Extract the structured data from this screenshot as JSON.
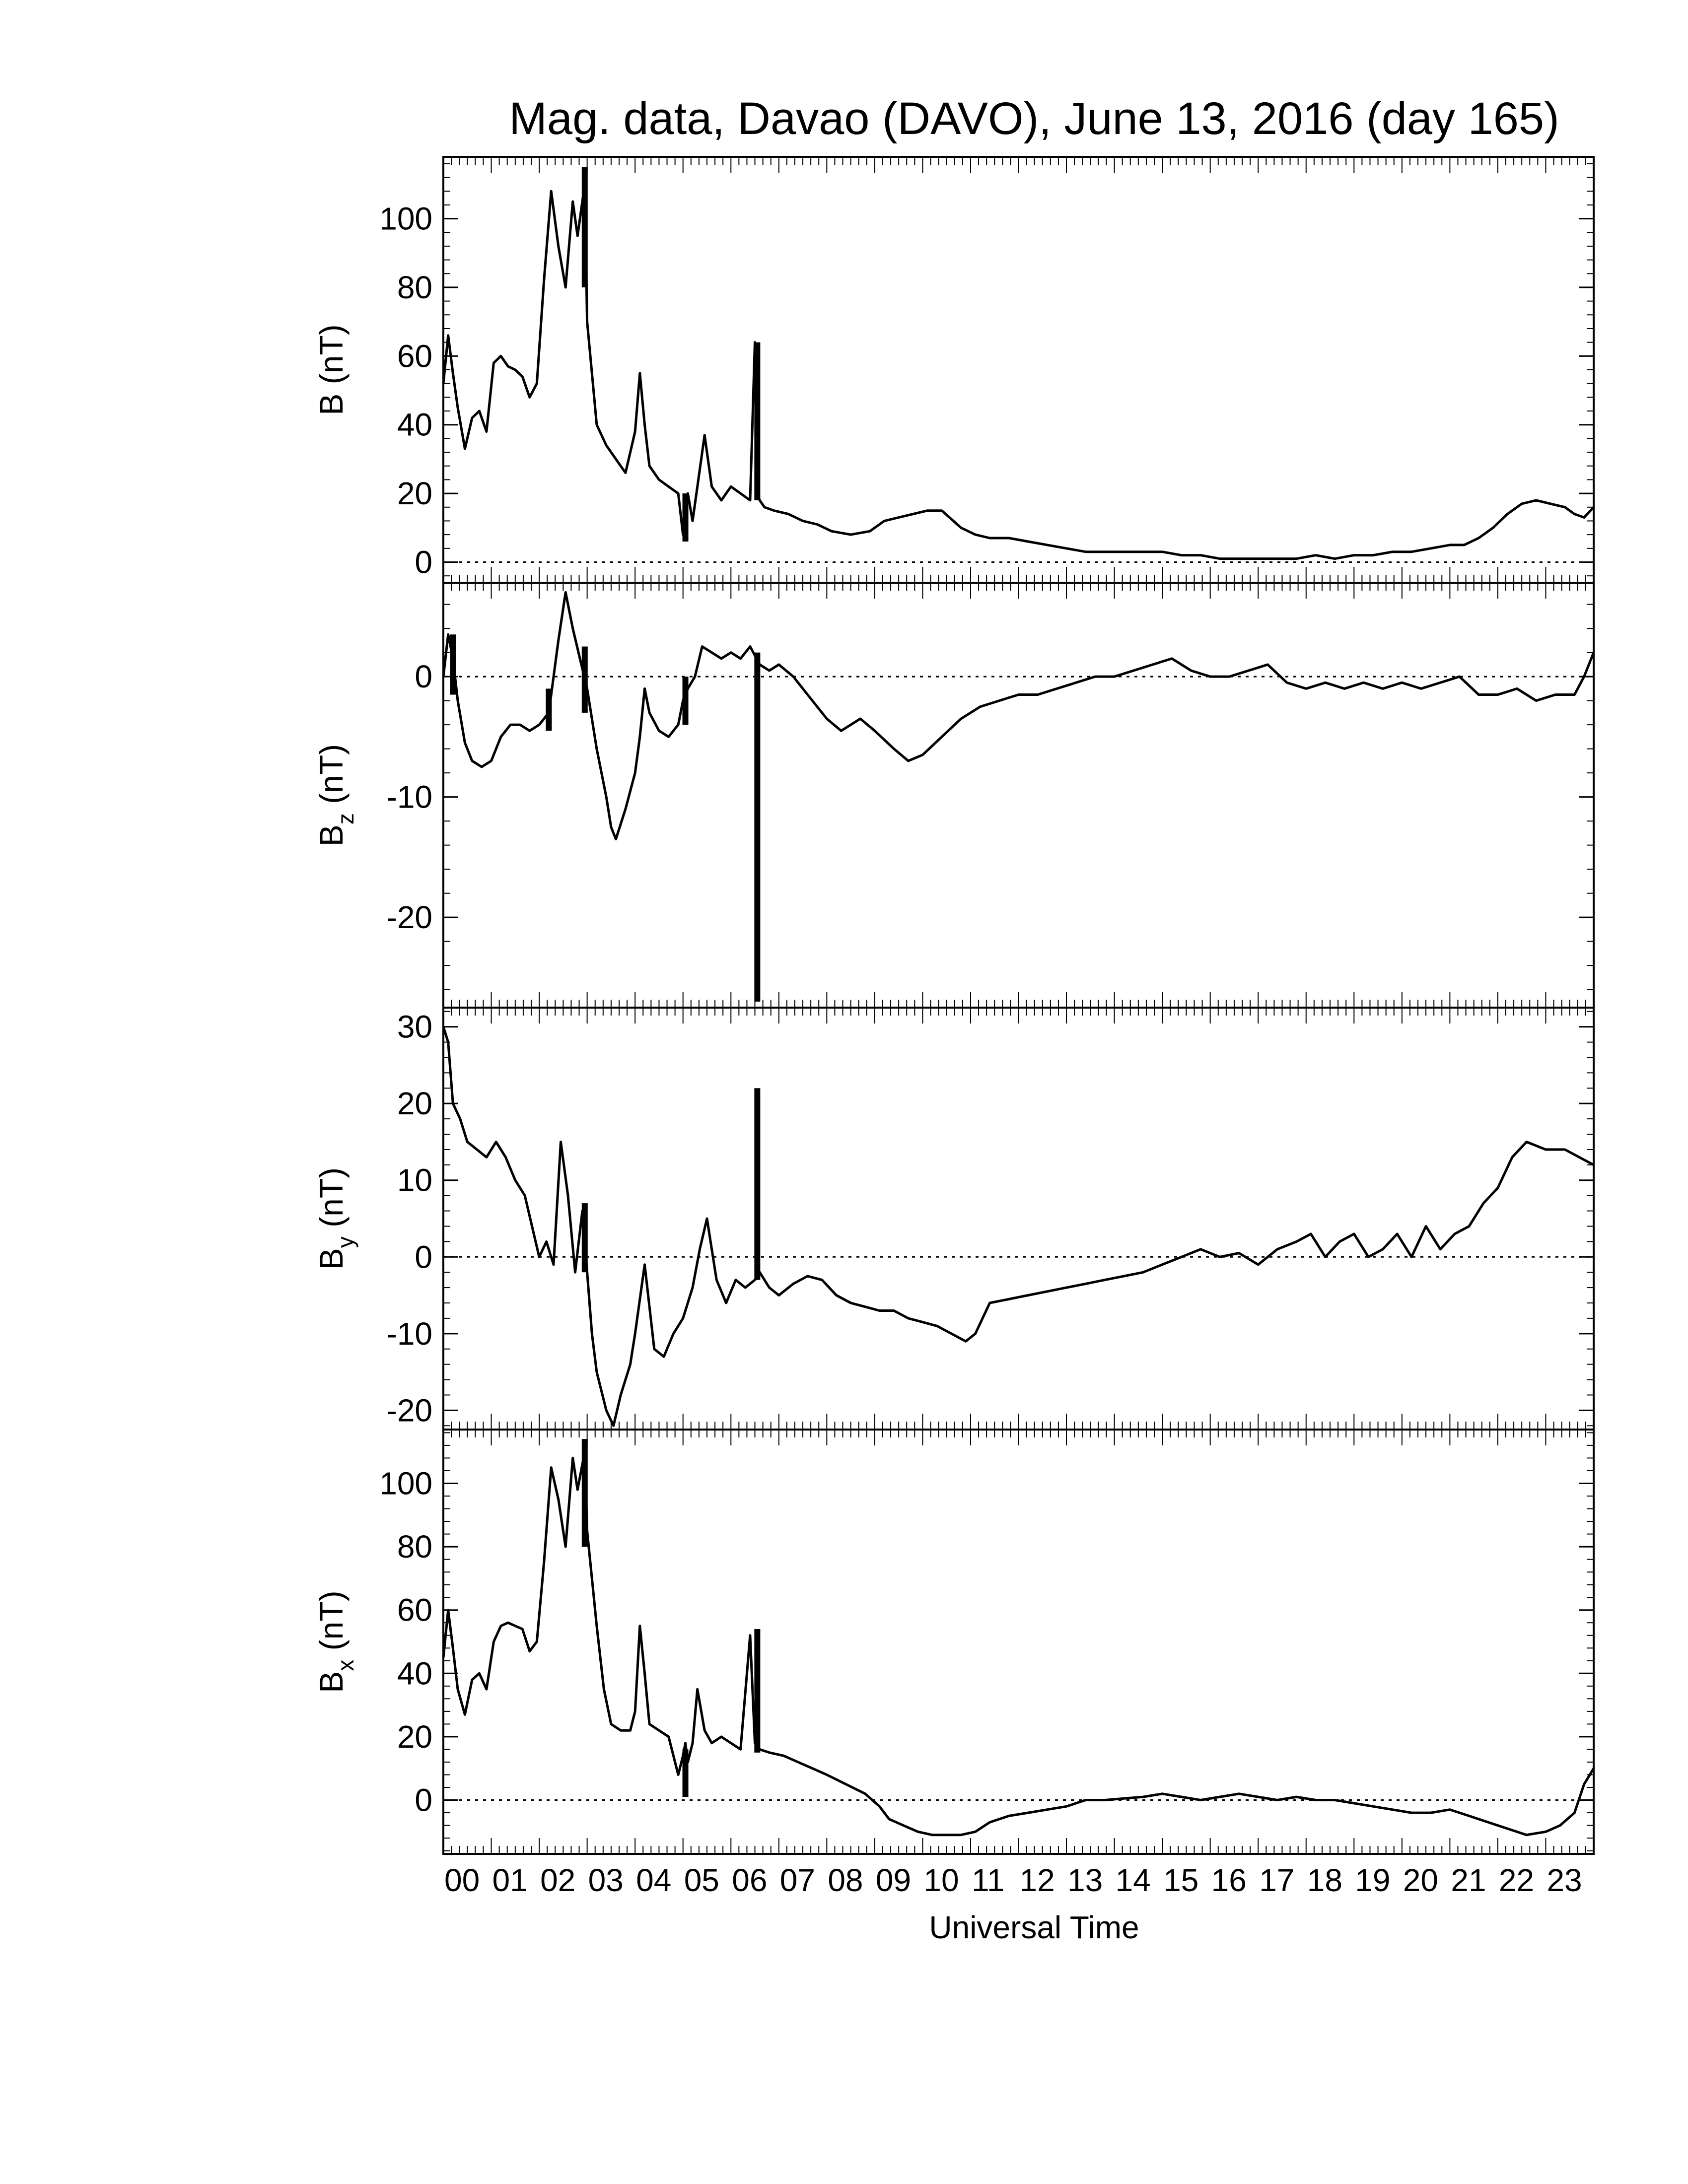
{
  "chart_data": {
    "type": "line",
    "title": "Mag. data, Davao (DAVO), June 13, 2016 (day 165)",
    "xlabel": "Universal Time",
    "xlim": [
      0,
      24
    ],
    "x_tick_labels": [
      "00",
      "01",
      "02",
      "03",
      "04",
      "05",
      "06",
      "07",
      "08",
      "09",
      "10",
      "11",
      "12",
      "13",
      "14",
      "15",
      "16",
      "17",
      "18",
      "19",
      "20",
      "21",
      "22",
      "23"
    ],
    "line_color": "#000000",
    "zero_line": "dotted",
    "panels": [
      {
        "id": "B",
        "ylabel_main": "B",
        "ylabel_sub": "",
        "ylabel_unit": " (nT)",
        "ylim": [
          -6,
          118
        ],
        "y_ticks": [
          0,
          20,
          40,
          60,
          80,
          100
        ],
        "y_tick_labels": [
          "0",
          "20",
          "40",
          "60",
          "80",
          "100"
        ],
        "x": [
          0.0,
          0.1,
          0.2,
          0.3,
          0.45,
          0.6,
          0.75,
          0.9,
          1.05,
          1.2,
          1.35,
          1.5,
          1.65,
          1.8,
          1.95,
          2.1,
          2.25,
          2.4,
          2.55,
          2.7,
          2.8,
          2.95,
          3.0,
          3.1,
          3.2,
          3.4,
          3.6,
          3.8,
          4.0,
          4.1,
          4.2,
          4.3,
          4.5,
          4.7,
          4.9,
          5.0,
          5.05,
          5.1,
          5.2,
          5.3,
          5.45,
          5.6,
          5.8,
          6.0,
          6.2,
          6.4,
          6.5,
          6.55,
          6.6,
          6.7,
          6.9,
          7.2,
          7.5,
          7.8,
          8.1,
          8.5,
          8.9,
          9.2,
          9.5,
          9.8,
          10.1,
          10.4,
          10.8,
          11.1,
          11.4,
          11.8,
          12.2,
          12.6,
          13.0,
          13.4,
          13.8,
          14.2,
          14.6,
          15.0,
          15.4,
          15.8,
          16.2,
          16.6,
          17.0,
          17.4,
          17.8,
          18.2,
          18.6,
          19.0,
          19.4,
          19.8,
          20.2,
          20.6,
          21.0,
          21.3,
          21.6,
          21.9,
          22.2,
          22.5,
          22.8,
          23.1,
          23.4,
          23.6,
          23.8,
          24.0
        ],
        "values": [
          52,
          66,
          55,
          45,
          33,
          42,
          44,
          38,
          58,
          60,
          57,
          56,
          54,
          48,
          52,
          82,
          108,
          92,
          80,
          105,
          95,
          110,
          70,
          55,
          40,
          34,
          30,
          26,
          38,
          55,
          40,
          28,
          24,
          22,
          20,
          8,
          18,
          20,
          12,
          22,
          37,
          22,
          18,
          22,
          20,
          18,
          64,
          20,
          18,
          16,
          15,
          14,
          12,
          11,
          9,
          8,
          9,
          12,
          13,
          14,
          15,
          15,
          10,
          8,
          7,
          7,
          6,
          5,
          4,
          3,
          3,
          3,
          3,
          3,
          2,
          2,
          1,
          1,
          1,
          1,
          1,
          2,
          1,
          2,
          2,
          3,
          3,
          4,
          5,
          5,
          7,
          10,
          14,
          17,
          18,
          17,
          16,
          14,
          13,
          16
        ],
        "spikes": [
          {
            "x": 2.95,
            "low": 80,
            "high": 115
          },
          {
            "x": 5.05,
            "low": 6,
            "high": 20
          },
          {
            "x": 6.55,
            "low": 18,
            "high": 64
          }
        ]
      },
      {
        "id": "Bz",
        "ylabel_main": "B",
        "ylabel_sub": "z",
        "ylabel_unit": " (nT)",
        "ylim": [
          -27.5,
          7.8
        ],
        "y_ticks": [
          0,
          -10,
          -20
        ],
        "y_tick_labels": [
          "0",
          "-10",
          "-20"
        ],
        "x": [
          0.0,
          0.1,
          0.2,
          0.3,
          0.45,
          0.6,
          0.8,
          1.0,
          1.2,
          1.4,
          1.6,
          1.8,
          2.0,
          2.2,
          2.4,
          2.55,
          2.7,
          2.85,
          3.0,
          3.2,
          3.4,
          3.5,
          3.6,
          3.8,
          4.0,
          4.1,
          4.2,
          4.3,
          4.5,
          4.7,
          4.9,
          5.0,
          5.1,
          5.25,
          5.4,
          5.6,
          5.8,
          6.0,
          6.2,
          6.4,
          6.6,
          6.8,
          7.0,
          7.3,
          7.6,
          8.0,
          8.3,
          8.7,
          9.0,
          9.4,
          9.7,
          10.0,
          10.4,
          10.8,
          11.2,
          11.6,
          12.0,
          12.4,
          12.8,
          13.2,
          13.6,
          14.0,
          14.4,
          14.8,
          15.2,
          15.6,
          16.0,
          16.4,
          16.8,
          17.2,
          17.6,
          18.0,
          18.4,
          18.8,
          19.2,
          19.6,
          20.0,
          20.4,
          20.8,
          21.2,
          21.6,
          22.0,
          22.4,
          22.8,
          23.2,
          23.6,
          23.8,
          24.0
        ],
        "values": [
          0,
          3.5,
          1.5,
          -2,
          -5.5,
          -7,
          -7.5,
          -7,
          -5,
          -4,
          -4,
          -4.5,
          -4,
          -3,
          3,
          7,
          4,
          1.5,
          -1,
          -6,
          -10,
          -12.5,
          -13.5,
          -11,
          -8,
          -5,
          -1,
          -3,
          -4.5,
          -5,
          -4,
          -2,
          -1,
          0,
          2.5,
          2,
          1.5,
          2,
          1.5,
          2.5,
          1,
          0.5,
          1,
          0,
          -1.5,
          -3.5,
          -4.5,
          -3.5,
          -4.5,
          -6,
          -7,
          -6.5,
          -5,
          -3.5,
          -2.5,
          -2,
          -1.5,
          -1.5,
          -1,
          -0.5,
          0,
          0,
          0.5,
          1,
          1.5,
          0.5,
          0,
          0,
          0.5,
          1,
          -0.5,
          -1,
          -0.5,
          -1,
          -0.5,
          -1,
          -0.5,
          -1,
          -0.5,
          0,
          -1.5,
          -1.5,
          -1,
          -2,
          -1.5,
          -1.5,
          0,
          2
        ],
        "spikes": [
          {
            "x": 0.2,
            "low": -1.5,
            "high": 3.5
          },
          {
            "x": 2.2,
            "low": -4.5,
            "high": -1
          },
          {
            "x": 2.95,
            "low": -3,
            "high": 2.5
          },
          {
            "x": 5.05,
            "low": -4,
            "high": 0
          },
          {
            "x": 6.55,
            "low": -27,
            "high": 2
          }
        ]
      },
      {
        "id": "By",
        "ylabel_main": "B",
        "ylabel_sub": "y",
        "ylabel_unit": " (nT)",
        "ylim": [
          -22.5,
          32.5
        ],
        "y_ticks": [
          -20,
          -10,
          0,
          10,
          20,
          30
        ],
        "y_tick_labels": [
          "-20",
          "-10",
          "0",
          "10",
          "20",
          "30"
        ],
        "x": [
          0.0,
          0.1,
          0.2,
          0.35,
          0.5,
          0.7,
          0.9,
          1.1,
          1.3,
          1.5,
          1.7,
          1.85,
          2.0,
          2.15,
          2.3,
          2.45,
          2.6,
          2.75,
          2.9,
          3.0,
          3.1,
          3.2,
          3.4,
          3.55,
          3.7,
          3.9,
          4.0,
          4.2,
          4.4,
          4.6,
          4.8,
          5.0,
          5.2,
          5.35,
          5.5,
          5.7,
          5.9,
          6.1,
          6.3,
          6.5,
          6.6,
          6.8,
          7.0,
          7.3,
          7.6,
          7.9,
          8.2,
          8.5,
          8.8,
          9.1,
          9.4,
          9.7,
          10.0,
          10.3,
          10.6,
          10.9,
          11.1,
          11.4,
          11.8,
          12.2,
          12.6,
          13.0,
          13.4,
          13.8,
          14.2,
          14.6,
          15.0,
          15.4,
          15.8,
          16.2,
          16.6,
          17.0,
          17.4,
          17.8,
          18.1,
          18.4,
          18.7,
          19.0,
          19.3,
          19.6,
          19.9,
          20.2,
          20.5,
          20.8,
          21.1,
          21.4,
          21.7,
          22.0,
          22.3,
          22.6,
          23.0,
          23.4,
          23.7,
          24.0
        ],
        "values": [
          30,
          28,
          20,
          18,
          15,
          14,
          13,
          15,
          13,
          10,
          8,
          4,
          0,
          2,
          -1,
          15,
          8,
          -2,
          6,
          -2,
          -10,
          -15,
          -20,
          -22,
          -18,
          -14,
          -10,
          -1,
          -12,
          -13,
          -10,
          -8,
          -4,
          1,
          5,
          -3,
          -6,
          -3,
          -4,
          -3,
          -2,
          -4,
          -5,
          -3.5,
          -2.5,
          -3,
          -5,
          -6,
          -6.5,
          -7,
          -7,
          -8,
          -8.5,
          -9,
          -10,
          -11,
          -10,
          -6,
          -5.5,
          -5,
          -4.5,
          -4,
          -3.5,
          -3,
          -2.5,
          -2,
          -1,
          0,
          1,
          0,
          0.5,
          -1,
          1,
          2,
          3,
          0,
          2,
          3,
          0,
          1,
          3,
          0,
          4,
          1,
          3,
          4,
          7,
          9,
          13,
          15,
          14,
          14,
          13,
          12
        ],
        "spikes": [
          {
            "x": 2.95,
            "low": -2,
            "high": 7
          },
          {
            "x": 6.55,
            "low": -3,
            "high": 22
          }
        ]
      },
      {
        "id": "Bx",
        "ylabel_main": "B",
        "ylabel_sub": "x",
        "ylabel_unit": " (nT)",
        "ylim": [
          -17,
          117
        ],
        "y_ticks": [
          0,
          20,
          40,
          60,
          80,
          100
        ],
        "y_tick_labels": [
          "0",
          "20",
          "40",
          "60",
          "80",
          "100"
        ],
        "x": [
          0.0,
          0.1,
          0.2,
          0.3,
          0.45,
          0.6,
          0.75,
          0.9,
          1.05,
          1.2,
          1.35,
          1.5,
          1.65,
          1.8,
          1.95,
          2.1,
          2.25,
          2.4,
          2.55,
          2.7,
          2.8,
          2.95,
          3.0,
          3.1,
          3.2,
          3.35,
          3.5,
          3.7,
          3.9,
          4.0,
          4.1,
          4.2,
          4.3,
          4.5,
          4.7,
          4.9,
          5.0,
          5.05,
          5.1,
          5.2,
          5.3,
          5.45,
          5.6,
          5.8,
          6.0,
          6.2,
          6.4,
          6.5,
          6.55,
          6.6,
          6.8,
          7.1,
          7.4,
          7.7,
          8.0,
          8.4,
          8.8,
          9.1,
          9.3,
          9.6,
          9.9,
          10.2,
          10.5,
          10.8,
          11.1,
          11.4,
          11.8,
          12.2,
          12.6,
          13.0,
          13.4,
          13.8,
          14.2,
          14.6,
          15.0,
          15.4,
          15.8,
          16.2,
          16.6,
          17.0,
          17.4,
          17.8,
          18.2,
          18.6,
          19.0,
          19.4,
          19.8,
          20.2,
          20.6,
          21.0,
          21.4,
          21.8,
          22.2,
          22.6,
          23.0,
          23.3,
          23.6,
          23.8,
          24.0
        ],
        "values": [
          45,
          60,
          48,
          35,
          27,
          38,
          40,
          35,
          50,
          55,
          56,
          55,
          54,
          47,
          50,
          75,
          105,
          95,
          80,
          108,
          98,
          110,
          85,
          70,
          55,
          35,
          24,
          22,
          22,
          28,
          55,
          40,
          24,
          22,
          20,
          8,
          14,
          18,
          12,
          18,
          35,
          22,
          18,
          20,
          18,
          16,
          52,
          18,
          17,
          16,
          15,
          14,
          12,
          10,
          8,
          5,
          2,
          -2,
          -6,
          -8,
          -10,
          -11,
          -11,
          -11,
          -10,
          -7,
          -5,
          -4,
          -3,
          -2,
          0,
          0,
          0.5,
          1,
          2,
          1,
          0,
          1,
          2,
          1,
          0,
          1,
          0,
          0,
          -1,
          -2,
          -3,
          -4,
          -4,
          -3,
          -5,
          -7,
          -9,
          -11,
          -10,
          -8,
          -4,
          5,
          10
        ],
        "spikes": [
          {
            "x": 2.95,
            "low": 80,
            "high": 114
          },
          {
            "x": 5.05,
            "low": 1,
            "high": 16
          },
          {
            "x": 6.55,
            "low": 15,
            "high": 54
          }
        ]
      }
    ]
  }
}
